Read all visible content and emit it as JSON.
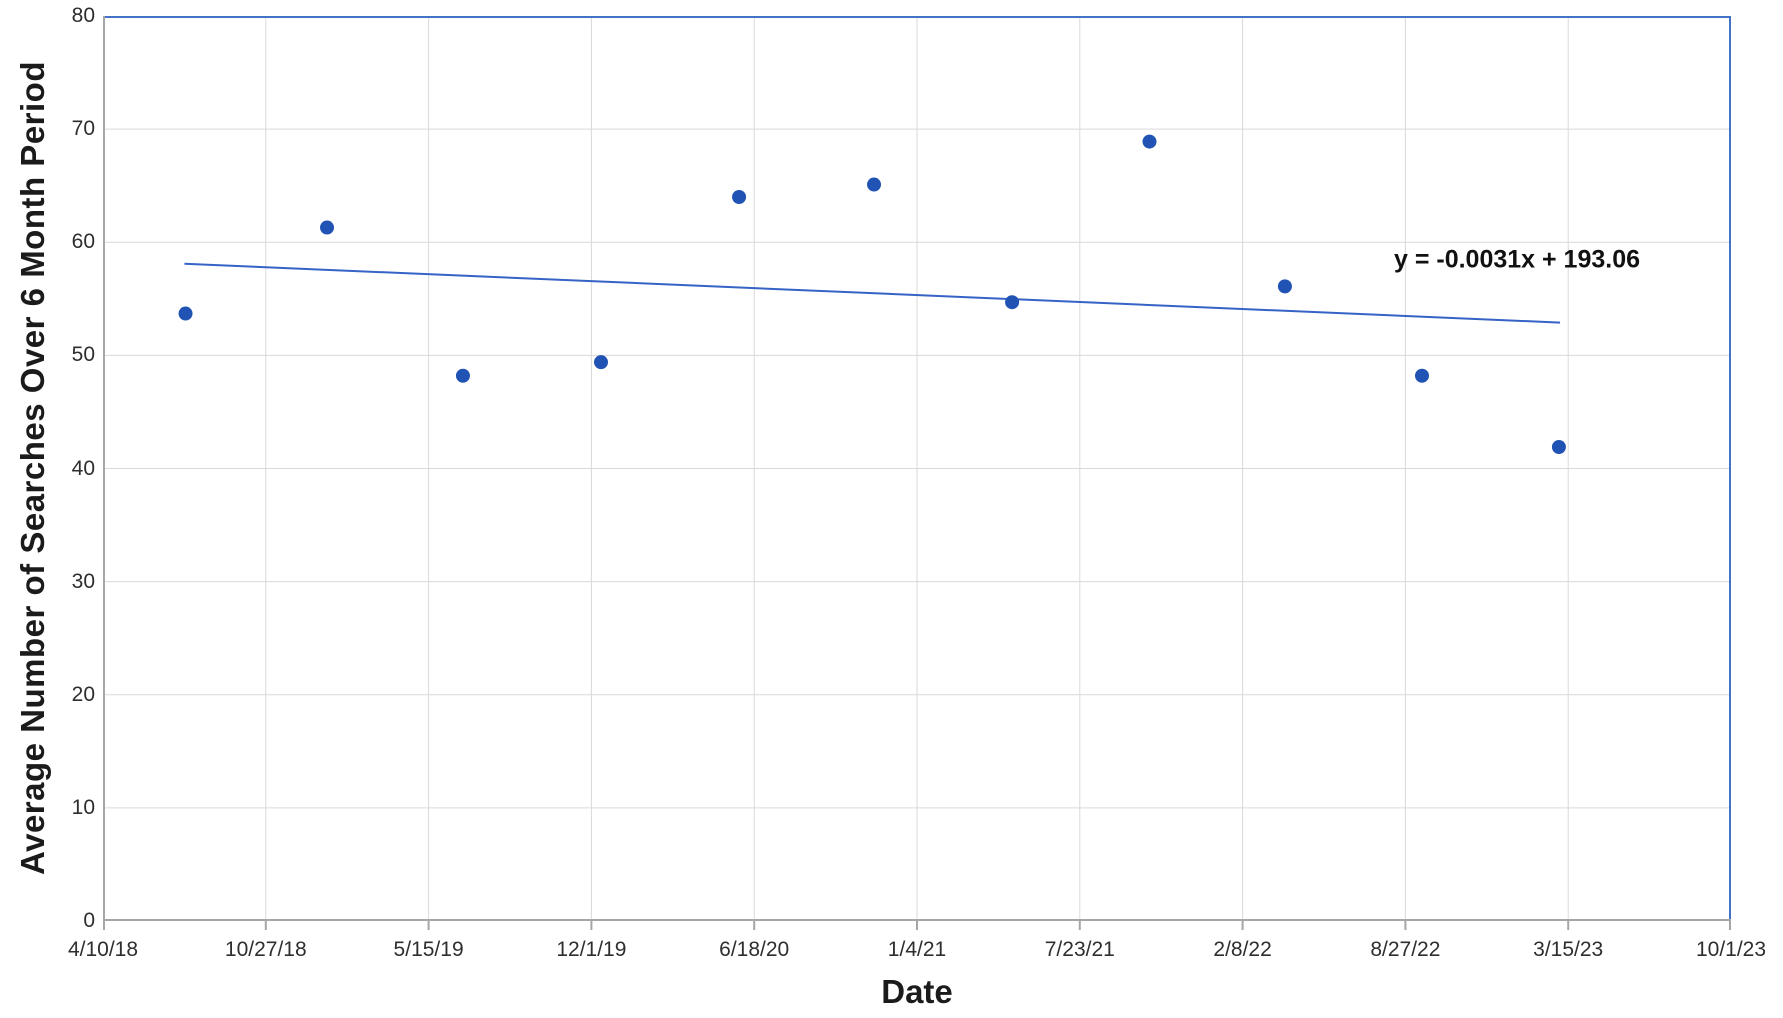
{
  "chart_data": {
    "type": "scatter",
    "title": "",
    "xlabel": "Date",
    "ylabel": "Average Number of Searches Over 6 Month Period",
    "x_tick_labels": [
      "4/10/18",
      "10/27/18",
      "5/15/19",
      "12/1/19",
      "6/18/20",
      "1/4/21",
      "7/23/21",
      "2/8/22",
      "8/27/22",
      "3/15/23",
      "10/1/23"
    ],
    "y_ticks": [
      0,
      10,
      20,
      30,
      40,
      50,
      60,
      70,
      80
    ],
    "ylim": [
      0,
      80
    ],
    "grid": true,
    "legend": "none",
    "points": [
      {
        "date_est": "7/19/18",
        "x_frac": 0.0507,
        "value": 53.7
      },
      {
        "date_est": "1/9/19",
        "x_frac": 0.1376,
        "value": 61.3
      },
      {
        "date_est": "6/24/19",
        "x_frac": 0.2211,
        "value": 48.2
      },
      {
        "date_est": "12/11/19",
        "x_frac": 0.3059,
        "value": 49.4
      },
      {
        "date_est": "5/27/20",
        "x_frac": 0.3907,
        "value": 64.0
      },
      {
        "date_est": "11/9/20",
        "x_frac": 0.4736,
        "value": 65.1
      },
      {
        "date_est": "4/27/21",
        "x_frac": 0.5584,
        "value": 54.7
      },
      {
        "date_est": "10/13/21",
        "x_frac": 0.6428,
        "value": 68.9
      },
      {
        "date_est": "3/27/22",
        "x_frac": 0.726,
        "value": 56.1
      },
      {
        "date_est": "9/11/22",
        "x_frac": 0.8102,
        "value": 48.2
      },
      {
        "date_est": "2/27/23",
        "x_frac": 0.8943,
        "value": 41.9
      }
    ],
    "trendline": {
      "equation": "y = -0.0031x + 193.06",
      "x1_frac": 0.05,
      "y1": 58.1,
      "x2_frac": 0.895,
      "y2": 52.9
    },
    "colors": {
      "point": "#2153b4",
      "trendline": "#3563c6",
      "border_top_right": "#4472c4",
      "axis": "#a6a6a6",
      "gridline": "#d9d9d9"
    }
  }
}
